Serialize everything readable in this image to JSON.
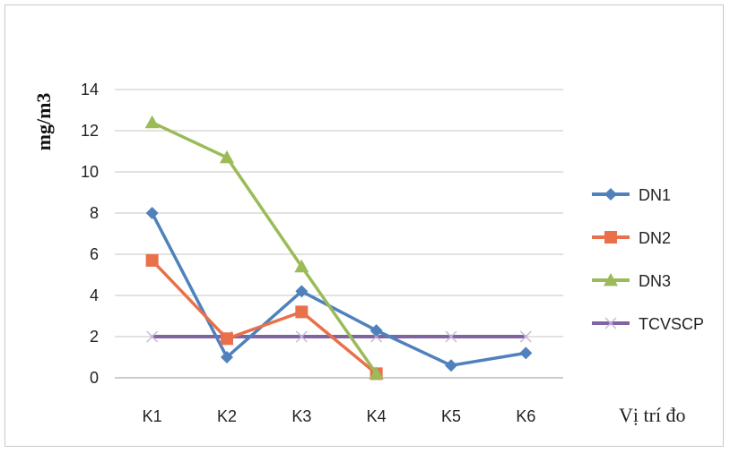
{
  "chart_data": {
    "type": "line",
    "title": "",
    "ylabel": "mg/m3",
    "xlabel": "Vị trí đo",
    "categories": [
      "K1",
      "K2",
      "K3",
      "K4",
      "K5",
      "K6"
    ],
    "ylim": [
      0,
      14
    ],
    "yticks": [
      0,
      2,
      4,
      6,
      8,
      10,
      12,
      14
    ],
    "grid": true,
    "legend_position": "right",
    "series": [
      {
        "name": "DN1",
        "color": "#4F81BD",
        "marker": "diamond",
        "values": [
          8.0,
          1.0,
          4.2,
          2.3,
          0.6,
          1.2
        ]
      },
      {
        "name": "DN2",
        "color": "#E8704A",
        "marker": "square",
        "values": [
          5.7,
          1.9,
          3.2,
          0.2,
          null,
          null
        ]
      },
      {
        "name": "DN3",
        "color": "#9BBB59",
        "marker": "triangle",
        "values": [
          12.4,
          10.7,
          5.4,
          0.2,
          null,
          null
        ]
      },
      {
        "name": "TCVSCP",
        "color": "#8064A2",
        "marker": "x",
        "values": [
          2,
          2,
          2,
          2,
          2,
          2
        ]
      }
    ]
  }
}
